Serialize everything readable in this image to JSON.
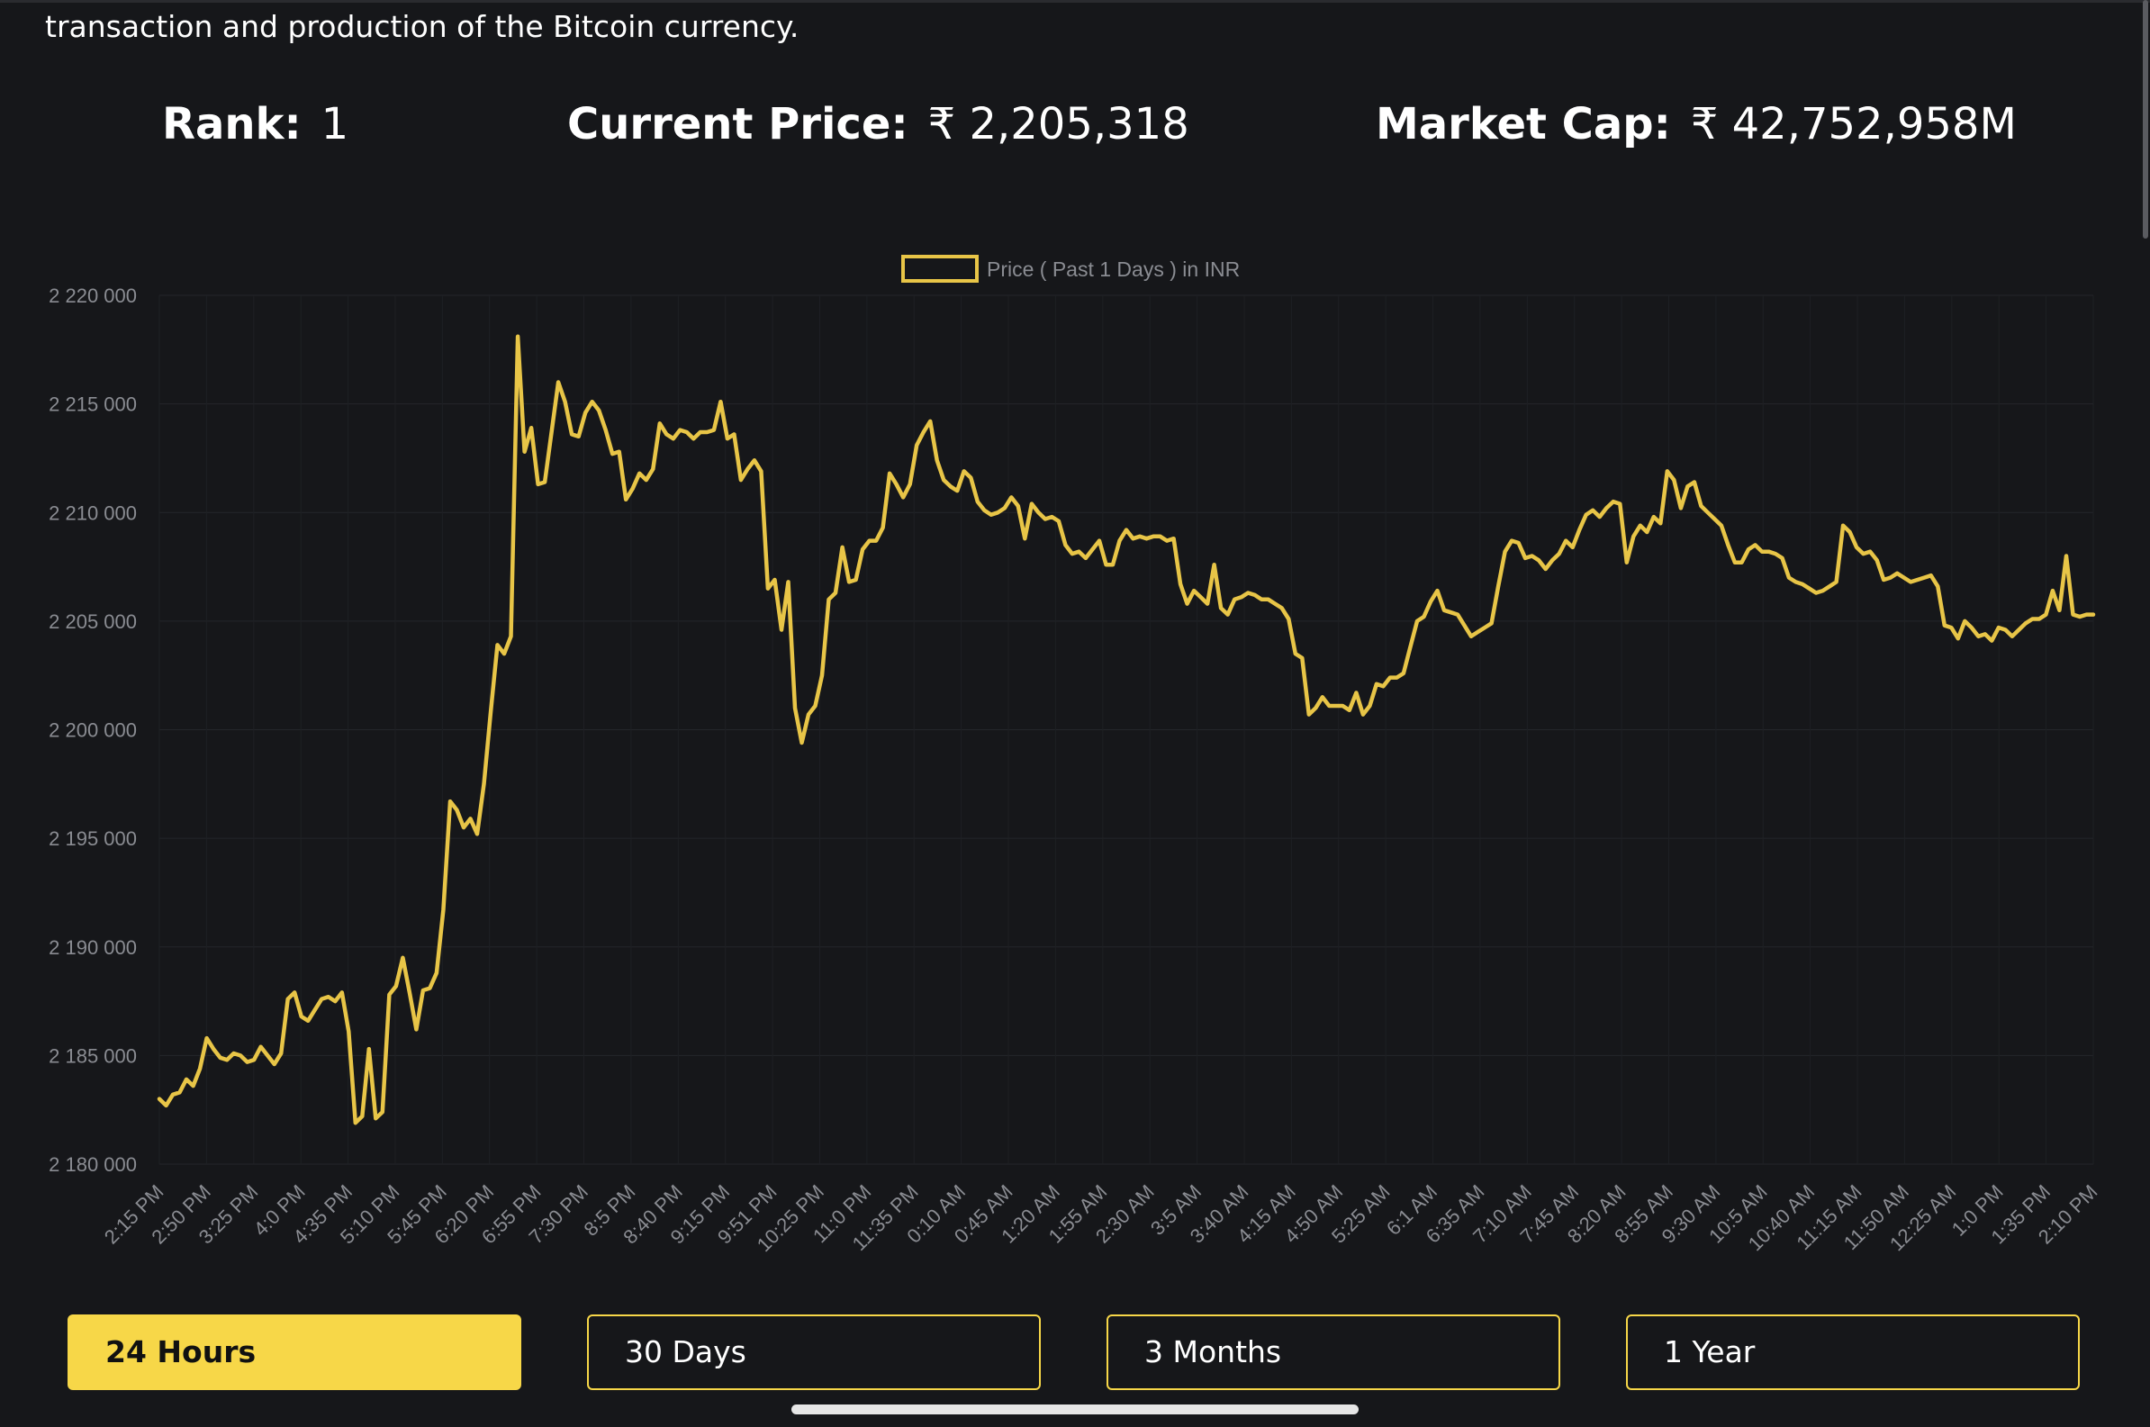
{
  "description": "transaction and production of the Bitcoin currency.",
  "stats": {
    "rank_label": "Rank:",
    "rank_value": "1",
    "price_label": "Current Price:",
    "price_value": "₹ 2,205,318",
    "cap_label": "Market Cap:",
    "cap_value": "₹ 42,752,958M"
  },
  "colors": {
    "background": "#16171a",
    "accent": "#f7d748",
    "line": "#e8c547",
    "tick_text": "#8a8c92"
  },
  "buttons": {
    "h24": "24 Hours",
    "d30": "30 Days",
    "m3": "3 Months",
    "y1": "1 Year",
    "active": "h24"
  },
  "chart_data": {
    "type": "line",
    "legend": "Price ( Past 1 Days ) in INR",
    "legend_position": "top-center",
    "y_ticks": [
      "2 220 000",
      "2 215 000",
      "2 210 000",
      "2 205 000",
      "2 200 000",
      "2 195 000",
      "2 190 000",
      "2 185 000",
      "2 180 000"
    ],
    "ylim": [
      2180000,
      2220000
    ],
    "x_tick_labels": [
      "2:15 PM",
      "2:50 PM",
      "3:25 PM",
      "4:0 PM",
      "4:35 PM",
      "5:10 PM",
      "5:45 PM",
      "6:20 PM",
      "6:55 PM",
      "7:30 PM",
      "8:5 PM",
      "8:40 PM",
      "9:15 PM",
      "9:51 PM",
      "10:25 PM",
      "11:0 PM",
      "11:35 PM",
      "0:10 AM",
      "0:45 AM",
      "1:20 AM",
      "1:55 AM",
      "2:30 AM",
      "3:5 AM",
      "3:40 AM",
      "4:15 AM",
      "4:50 AM",
      "5:25 AM",
      "6:1 AM",
      "6:35 AM",
      "7:10 AM",
      "7:45 AM",
      "8:20 AM",
      "8:55 AM",
      "9:30 AM",
      "10:5 AM",
      "10:40 AM",
      "11:15 AM",
      "11:50 AM",
      "12:25 AM",
      "1:0 PM",
      "1:35 PM",
      "2:10 PM"
    ],
    "grid": true,
    "values": [
      2183000,
      2182700,
      2183200,
      2183300,
      2183900,
      2183600,
      2184400,
      2185800,
      2185300,
      2184900,
      2184800,
      2185100,
      2185000,
      2184700,
      2184800,
      2185400,
      2185000,
      2184600,
      2185100,
      2187600,
      2187900,
      2186800,
      2186600,
      2187100,
      2187600,
      2187700,
      2187500,
      2187900,
      2186100,
      2181900,
      2182200,
      2185300,
      2182100,
      2182400,
      2187800,
      2188200,
      2189500,
      2187900,
      2186200,
      2188000,
      2188100,
      2188800,
      2191700,
      2196700,
      2196300,
      2195500,
      2195900,
      2195200,
      2197500,
      2200800,
      2203900,
      2203500,
      2204300,
      2218100,
      2212800,
      2213900,
      2211300,
      2211400,
      2213700,
      2216000,
      2215100,
      2213600,
      2213500,
      2214600,
      2215100,
      2214700,
      2213800,
      2212700,
      2212800,
      2210600,
      2211100,
      2211800,
      2211500,
      2212000,
      2214100,
      2213600,
      2213400,
      2213800,
      2213700,
      2213400,
      2213700,
      2213700,
      2213800,
      2215100,
      2213400,
      2213600,
      2211500,
      2212000,
      2212400,
      2211900,
      2206500,
      2206900,
      2204600,
      2206800,
      2201000,
      2199400,
      2200700,
      2201100,
      2202500,
      2206000,
      2206300,
      2208400,
      2206800,
      2206900,
      2208300,
      2208700,
      2208700,
      2209300,
      2211800,
      2211300,
      2210700,
      2211300,
      2213100,
      2213700,
      2214200,
      2212400,
      2211500,
      2211200,
      2211000,
      2211900,
      2211600,
      2210500,
      2210100,
      2209900,
      2210000,
      2210200,
      2210700,
      2210300,
      2208800,
      2210400,
      2210000,
      2209700,
      2209800,
      2209600,
      2208500,
      2208100,
      2208200,
      2207900,
      2208300,
      2208700,
      2207600,
      2207600,
      2208700,
      2209200,
      2208800,
      2208900,
      2208800,
      2208900,
      2208900,
      2208700,
      2208800,
      2206700,
      2205800,
      2206400,
      2206100,
      2205800,
      2207600,
      2205600,
      2205300,
      2206000,
      2206100,
      2206300,
      2206200,
      2206000,
      2206000,
      2205800,
      2205600,
      2205100,
      2203500,
      2203300,
      2200700,
      2201000,
      2201500,
      2201100,
      2201100,
      2201100,
      2200900,
      2201700,
      2200700,
      2201100,
      2202100,
      2202000,
      2202400,
      2202400,
      2202600,
      2203800,
      2205000,
      2205200,
      2205900,
      2206400,
      2205500,
      2205400,
      2205300,
      2204800,
      2204300,
      2204500,
      2204700,
      2204900,
      2206600,
      2208200,
      2208700,
      2208600,
      2207900,
      2208000,
      2207800,
      2207400,
      2207800,
      2208100,
      2208700,
      2208400,
      2209200,
      2209900,
      2210100,
      2209800,
      2210200,
      2210500,
      2210400,
      2207700,
      2208900,
      2209400,
      2209100,
      2209800,
      2209500,
      2211900,
      2211500,
      2210200,
      2211200,
      2211400,
      2210300,
      2210000,
      2209700,
      2209400,
      2208500,
      2207700,
      2207700,
      2208300,
      2208500,
      2208200,
      2208200,
      2208100,
      2207900,
      2207000,
      2206800,
      2206700,
      2206500,
      2206300,
      2206400,
      2206600,
      2206800,
      2209400,
      2209100,
      2208400,
      2208100,
      2208200,
      2207800,
      2206900,
      2207000,
      2207200,
      2207000,
      2206800,
      2206900,
      2207000,
      2207100,
      2206600,
      2204800,
      2204700,
      2204200,
      2205000,
      2204700,
      2204300,
      2204400,
      2204100,
      2204700,
      2204600,
      2204300,
      2204600,
      2204900,
      2205100,
      2205100,
      2205300,
      2206400,
      2205500,
      2208000,
      2205300,
      2205200,
      2205300,
      2205300
    ]
  }
}
